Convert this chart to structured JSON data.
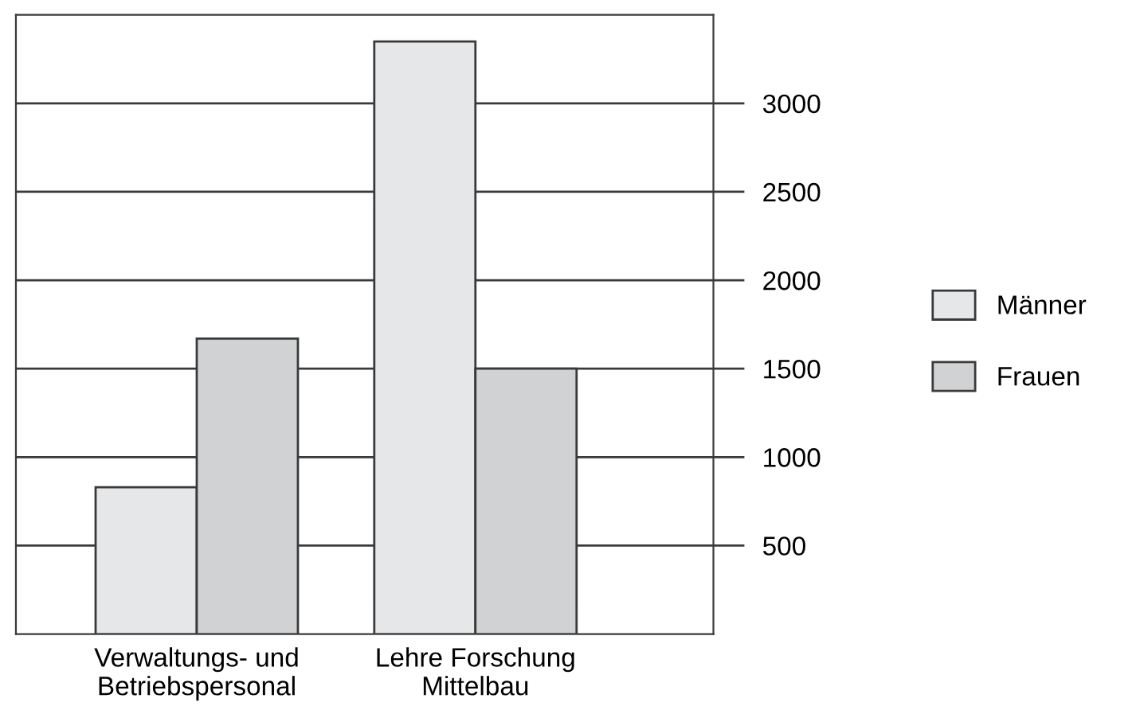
{
  "chart_data": {
    "type": "bar",
    "categories": [
      "Verwaltungs- und\nBetriebspersonal",
      "Lehre Forschung\nMittelbau"
    ],
    "series": [
      {
        "name": "Männer",
        "color": "#e6e7e8",
        "values": [
          830,
          3350
        ]
      },
      {
        "name": "Frauen",
        "color": "#d1d2d4",
        "values": [
          1670,
          1500
        ]
      }
    ],
    "ylim": [
      0,
      3500
    ],
    "yticks": [
      500,
      1000,
      1500,
      2000,
      2500,
      3000
    ],
    "grid": "y",
    "legend": "right"
  }
}
